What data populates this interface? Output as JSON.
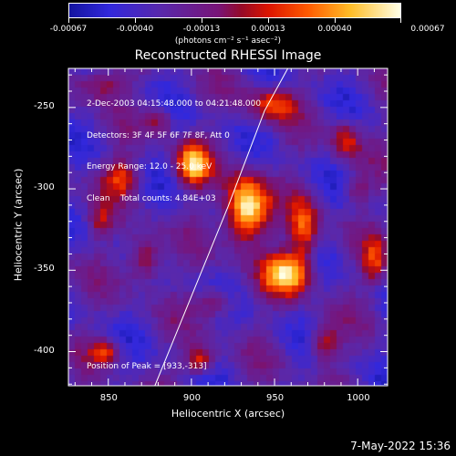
{
  "colorbar": {
    "tick_labels": [
      "-0.00067",
      "-0.00040",
      "-0.00013",
      "0.00013",
      "0.00040",
      "0.00067"
    ],
    "tick_values": [
      -0.00067,
      -0.0004,
      -0.00013,
      0.00013,
      0.0004,
      0.00067
    ],
    "unit_label": "(photons cm⁻² s⁻¹ asec⁻²)",
    "range": [
      -0.00067,
      0.00067
    ]
  },
  "chart_data": {
    "type": "heatmap",
    "title": "Reconstructed RHESSI Image",
    "xlabel": "Heliocentric X (arcsec)",
    "ylabel": "Heliocentric Y (arcsec)",
    "xlim": [
      826,
      1018
    ],
    "ylim": [
      -421,
      -226
    ],
    "x_ticks": [
      850,
      900,
      950,
      1000
    ],
    "y_ticks": [
      -250,
      -300,
      -350,
      -400
    ],
    "x_tick_labels": [
      "850",
      "900",
      "950",
      "1000"
    ],
    "y_tick_labels": [
      "-250",
      "-300",
      "-350",
      "-400"
    ],
    "info_lines": [
      "2-Dec-2003 04:15:48.000 to 04:21:48.000",
      "Detectors: 3F 4F 5F 6F 7F 8F, Att 0",
      "Energy Range: 12.0 - 25.0 keV",
      "Clean    Total counts: 4.84E+03"
    ],
    "peak_label": "Position of Peak = [933,-313]",
    "peak": [
      933,
      -313
    ],
    "sources": [
      {
        "x": 933,
        "y": -313,
        "sx": 9,
        "sy": 14,
        "amp": 1.0
      },
      {
        "x": 901,
        "y": -285,
        "sx": 7,
        "sy": 9,
        "amp": 0.72
      },
      {
        "x": 958,
        "y": -352,
        "sx": 10,
        "sy": 9,
        "amp": 0.78
      },
      {
        "x": 968,
        "y": -325,
        "sx": 6,
        "sy": 14,
        "amp": 0.55
      },
      {
        "x": 858,
        "y": -293,
        "sx": 8,
        "sy": 8,
        "amp": 0.45
      },
      {
        "x": 872,
        "y": -343,
        "sx": 7,
        "sy": 10,
        "amp": 0.5
      },
      {
        "x": 905,
        "y": -405,
        "sx": 6,
        "sy": 6,
        "amp": 0.55
      },
      {
        "x": 848,
        "y": -400,
        "sx": 6,
        "sy": 5,
        "amp": 0.48
      },
      {
        "x": 980,
        "y": -395,
        "sx": 6,
        "sy": 8,
        "amp": 0.45
      },
      {
        "x": 993,
        "y": -270,
        "sx": 6,
        "sy": 8,
        "amp": 0.45
      },
      {
        "x": 948,
        "y": -248,
        "sx": 10,
        "sy": 7,
        "amp": 0.5
      },
      {
        "x": 845,
        "y": -235,
        "sx": 10,
        "sy": 7,
        "amp": 0.42
      },
      {
        "x": 1010,
        "y": -345,
        "sx": 5,
        "sy": 10,
        "amp": 0.42
      },
      {
        "x": 915,
        "y": -370,
        "sx": 8,
        "sy": 6,
        "amp": 0.38
      },
      {
        "x": 880,
        "y": -258,
        "sx": 6,
        "sy": 6,
        "amp": 0.35
      },
      {
        "x": 845,
        "y": -320,
        "sx": 5,
        "sy": 7,
        "amp": 0.3
      },
      {
        "x": 1000,
        "y": -300,
        "sx": 5,
        "sy": 6,
        "amp": 0.3
      }
    ],
    "limb_curve": [
      [
        878,
        -421
      ],
      [
        900,
        -366
      ],
      [
        922,
        -311
      ],
      [
        944,
        -252
      ],
      [
        958,
        -226
      ]
    ],
    "grid": false
  },
  "timestamp": "7-May-2022 15:36"
}
